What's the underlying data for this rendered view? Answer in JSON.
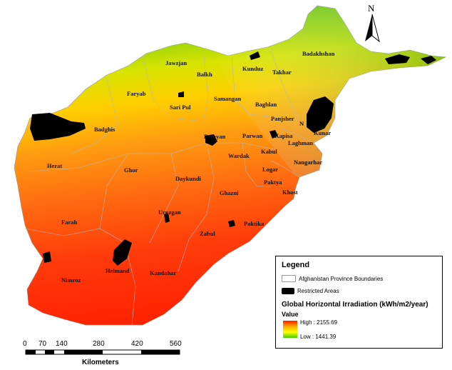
{
  "map": {
    "north_label": "N",
    "provinces": [
      {
        "name": "Badakhshan"
      },
      {
        "name": "Jawzjan"
      },
      {
        "name": "Balkh"
      },
      {
        "name": "Kunduz"
      },
      {
        "name": "Takhar"
      },
      {
        "name": "Faryab"
      },
      {
        "name": "Samangan"
      },
      {
        "name": "Sari Pul"
      },
      {
        "name": "Baghlan"
      },
      {
        "name": "Panjsher"
      },
      {
        "name": "Nuristan",
        "display": "N"
      },
      {
        "name": "Badghis"
      },
      {
        "name": "Bamyan"
      },
      {
        "name": "Parwan"
      },
      {
        "name": "Kapisa"
      },
      {
        "name": "Kunar"
      },
      {
        "name": "Laghman"
      },
      {
        "name": "Kabul"
      },
      {
        "name": "Wardak"
      },
      {
        "name": "Nangarhar"
      },
      {
        "name": "Herat"
      },
      {
        "name": "Ghor"
      },
      {
        "name": "Logar"
      },
      {
        "name": "Daykundi"
      },
      {
        "name": "Paktya"
      },
      {
        "name": "Ghazni"
      },
      {
        "name": "Khost"
      },
      {
        "name": "Uruzgan"
      },
      {
        "name": "Farah"
      },
      {
        "name": "Paktika"
      },
      {
        "name": "Zabul"
      },
      {
        "name": "Helmand"
      },
      {
        "name": "Kandahar"
      },
      {
        "name": "Nimroz"
      }
    ]
  },
  "legend": {
    "title": "Legend",
    "boundaries_label": "Afghanistan Province Boundaries",
    "restricted_label": "Restricted Areas",
    "raster_title": "Global Horizontal Irradiation (kWh/m2/year)",
    "value_label": "Value",
    "high_label": "High : 2155.69",
    "low_label": "Low : 1441.39",
    "high_value": 2155.69,
    "low_value": 1441.39,
    "colors": {
      "high": "#ff1a00",
      "mid_high": "#ffaa00",
      "mid": "#ffff00",
      "low": "#44cc00"
    }
  },
  "scale_bar": {
    "ticks": [
      "0",
      "70",
      "140",
      "280",
      "420",
      "560"
    ],
    "unit_label": "Kilometers"
  }
}
